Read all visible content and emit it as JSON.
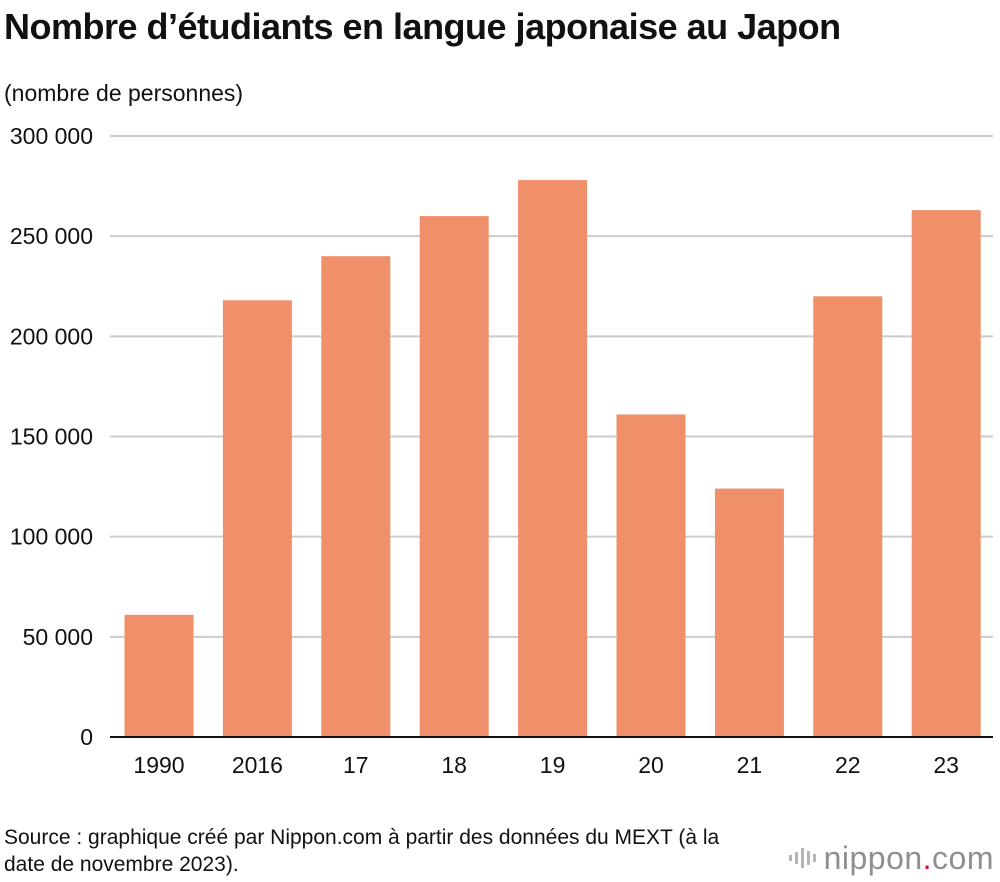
{
  "header": {
    "title": "Nombre d’étudiants en langue japonaise au Japon",
    "unit_label": "(nombre de personnes)"
  },
  "footer": {
    "source": "Source : graphique créé par Nippon.com à partir des données du MEXT (à la date de novembre 2023).",
    "logo_name": "nippon",
    "logo_dot": ".",
    "logo_suffix": "com"
  },
  "colors": {
    "bar": "#f0906a",
    "grid": "#cccccc",
    "axis": "#111111"
  },
  "chart_data": {
    "type": "bar",
    "title": "Nombre d’étudiants en langue japonaise au Japon",
    "ylabel": "(nombre de personnes)",
    "categories": [
      "1990",
      "2016",
      "17",
      "18",
      "19",
      "20",
      "21",
      "22",
      "23"
    ],
    "values": [
      61000,
      218000,
      240000,
      260000,
      278000,
      161000,
      124000,
      220000,
      263000
    ],
    "ylim": [
      0,
      300000
    ],
    "yticks": [
      0,
      50000,
      100000,
      150000,
      200000,
      250000,
      300000
    ],
    "ytick_labels": [
      "0",
      "50 000",
      "100 000",
      "150 000",
      "200 000",
      "250 000",
      "300 000"
    ],
    "grid": true,
    "legend": "none"
  }
}
